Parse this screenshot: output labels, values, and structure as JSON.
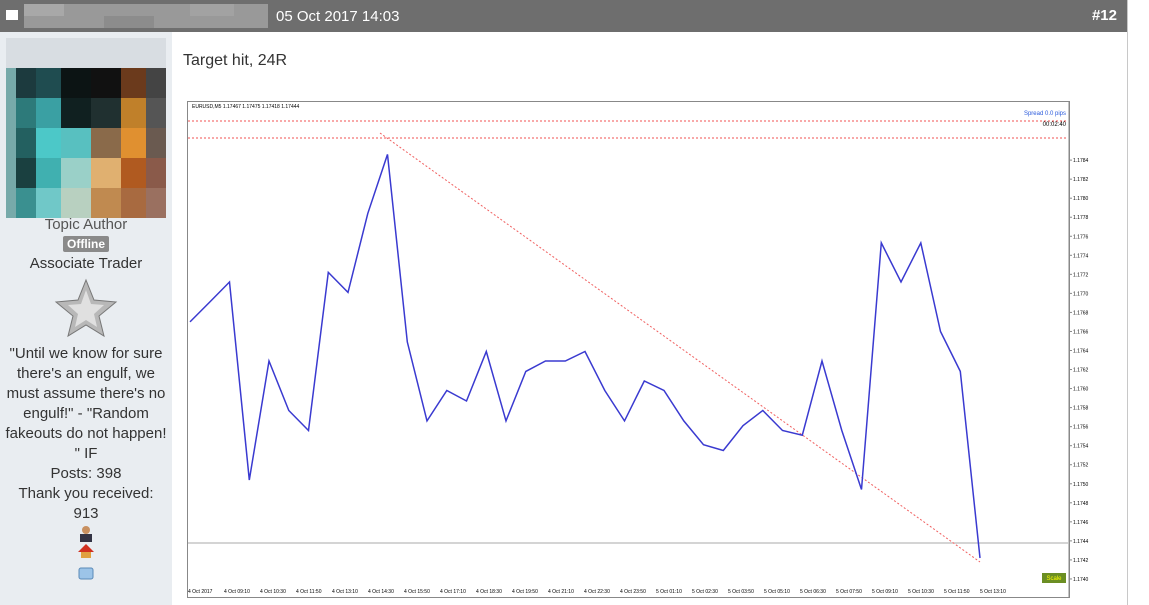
{
  "post": {
    "date": "05 Oct 2017 14:03",
    "number": "#12",
    "author": {
      "role": "Topic Author",
      "status": "Offline",
      "rank": "Associate Trader",
      "signature": "\"Until we know for sure there's an engulf, we must assume there's no engulf!\" - \"Random fakeouts do not happen! \" IF",
      "posts": "Posts: 398",
      "thanks": "Thank you received:",
      "thanks_count": "913"
    },
    "body": "Target hit, 24R",
    "chart": {
      "header": "EURUSD,M5 1.17467 1.17475 1.17418 1.17444",
      "spread": "Spread 0.0 pips",
      "timer": "00:02:40",
      "scale": "Scale",
      "color": "#3a3ad0",
      "ylim": [
        1.1738,
        1.179
      ],
      "yticks": [
        {
          "value": 1.174,
          "label": "1.1740"
        },
        1.1742,
        1.1744,
        1.1746,
        1.1748,
        {
          "value": 1.175,
          "label": "1.1750"
        },
        1.1752,
        1.1754,
        1.1756,
        1.1758,
        {
          "value": 1.176,
          "label": "1.1760"
        },
        1.1762,
        1.1764,
        1.1766,
        1.1768,
        {
          "value": 1.177,
          "label": "1.1770"
        },
        1.1772,
        1.1774,
        1.1776,
        1.1778,
        {
          "value": 1.178,
          "label": "1.1780"
        },
        1.1782,
        1.1784
      ],
      "xlabels": [
        "4 Oct 2017",
        "4 Oct 09:10",
        "4 Oct 10:30",
        "4 Oct 11:50",
        "4 Oct 13:10",
        "4 Oct 14:30",
        "4 Oct 15:50",
        "4 Oct 17:10",
        "4 Oct 18:30",
        "4 Oct 19:50",
        "4 Oct 21:10",
        "4 Oct 22:30",
        "4 Oct 23:50",
        "5 Oct 01:10",
        "5 Oct 02:30",
        "5 Oct 03:50",
        "5 Oct 05:10",
        "5 Oct 06:30",
        "5 Oct 07:50",
        "5 Oct 09:10",
        "5 Oct 10:30",
        "5 Oct 11:50",
        "5 Oct 13:10"
      ],
      "values": [
        1.1767,
        1.17691,
        1.17712,
        1.17504,
        1.17629,
        1.17577,
        1.17556,
        1.17722,
        1.17701,
        1.17784,
        1.17846,
        1.17649,
        1.17566,
        1.17598,
        1.17587,
        1.17639,
        1.17566,
        1.17618,
        1.17629,
        1.17629,
        1.17639,
        1.17598,
        1.17566,
        1.17608,
        1.17598,
        1.17566,
        1.17541,
        1.17535,
        1.17561,
        1.17577,
        1.17556,
        1.17551,
        1.17629,
        1.17556,
        1.17494,
        1.17753,
        1.17712,
        1.17753,
        1.1766,
        1.17618,
        1.17422
      ]
    }
  }
}
